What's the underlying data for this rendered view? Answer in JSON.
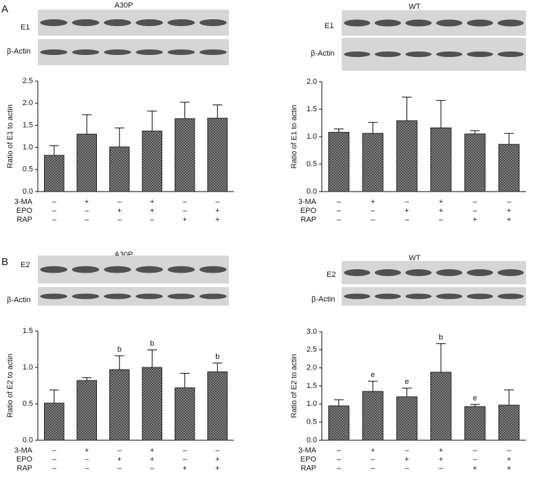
{
  "panels": [
    "A",
    "B"
  ],
  "chart_data": [
    {
      "type": "bar",
      "panel": "A",
      "title": "A30P",
      "blot_labels": [
        "E1",
        "β-Actin"
      ],
      "ylabel": "Ratio of E1 to actin",
      "ylim": [
        0,
        2.5
      ],
      "yticks": [
        {
          "value": 0,
          "label": "0.0"
        },
        0.5,
        {
          "value": 1,
          "label": "1.0"
        },
        1.5,
        {
          "value": 2,
          "label": "2.0"
        },
        2.5
      ],
      "values": [
        0.82,
        1.3,
        1.01,
        1.37,
        1.65,
        1.66
      ],
      "errors": [
        0.22,
        0.44,
        0.43,
        0.45,
        0.37,
        0.3
      ],
      "color": "#8c8c8c",
      "conditions": [
        {
          "name": "3-MA",
          "signs": [
            "–",
            "+",
            "–",
            "+",
            "–",
            "–"
          ]
        },
        {
          "name": "EPO",
          "signs": [
            "–",
            "–",
            "+",
            "+",
            "–",
            "+"
          ]
        },
        {
          "name": "RAP",
          "signs": [
            "–",
            "–",
            "–",
            "–",
            "+",
            "+"
          ]
        }
      ]
    },
    {
      "type": "bar",
      "title": "WT",
      "blot_labels": [
        "E1",
        "β-Actin"
      ],
      "ylabel": "Ratio of E1 to actin",
      "ylim": [
        0,
        2
      ],
      "yticks": [
        {
          "value": 0,
          "label": "0.0"
        },
        0.5,
        {
          "value": 1,
          "label": "1.0"
        },
        1.5,
        {
          "value": 2,
          "label": "2.0"
        }
      ],
      "values": [
        1.08,
        1.06,
        1.29,
        1.16,
        1.05,
        0.86
      ],
      "errors": [
        0.06,
        0.2,
        0.43,
        0.5,
        0.06,
        0.2
      ],
      "color": "#8c8c8c",
      "conditions": [
        {
          "name": "3-MA",
          "signs": [
            "–",
            "+",
            "–",
            "+",
            "–",
            "–"
          ]
        },
        {
          "name": "EPO",
          "signs": [
            "–",
            "–",
            "+",
            "+",
            "–",
            "+"
          ]
        },
        {
          "name": "RAP",
          "signs": [
            "–",
            "–",
            "–",
            "–",
            "+",
            "+"
          ]
        }
      ]
    },
    {
      "type": "bar",
      "panel": "B",
      "title": "A30P",
      "blot_labels": [
        "E2",
        "β-Actin"
      ],
      "ylabel": "Ratio of E2 to actin",
      "ylim": [
        0,
        1.5
      ],
      "yticks": [
        {
          "value": 0,
          "label": "0.0"
        },
        0.5,
        {
          "value": 1,
          "label": "1.0"
        },
        1.5
      ],
      "values": [
        0.51,
        0.82,
        0.97,
        1.0,
        0.72,
        0.94
      ],
      "errors": [
        0.18,
        0.04,
        0.19,
        0.24,
        0.2,
        0.12
      ],
      "color": "#8c8c8c",
      "annotations": [
        null,
        null,
        "b",
        "b",
        null,
        "b"
      ],
      "conditions": [
        {
          "name": "3-MA",
          "signs": [
            "–",
            "+",
            "–",
            "+",
            "–",
            "–"
          ]
        },
        {
          "name": "EPO",
          "signs": [
            "–",
            "–",
            "+",
            "+",
            "–",
            "+"
          ]
        },
        {
          "name": "RAP",
          "signs": [
            "–",
            "–",
            "–",
            "–",
            "+",
            "+"
          ]
        }
      ]
    },
    {
      "type": "bar",
      "title": "WT",
      "blot_labels": [
        "E2",
        "β-Actin"
      ],
      "ylabel": "Ratio of E2 to actin",
      "ylim": [
        0,
        3
      ],
      "yticks": [
        {
          "value": 0,
          "label": "0.0"
        },
        0.5,
        {
          "value": 1,
          "label": "1.0"
        },
        1.5,
        {
          "value": 2,
          "label": "2.0"
        },
        2.5,
        {
          "value": 3,
          "label": "3.0"
        }
      ],
      "values": [
        0.95,
        1.35,
        1.2,
        1.88,
        0.93,
        0.97
      ],
      "errors": [
        0.17,
        0.28,
        0.24,
        0.79,
        0.06,
        0.42
      ],
      "color": "#8c8c8c",
      "annotations": [
        null,
        "e",
        "e",
        "b",
        "e",
        null
      ],
      "conditions": [
        {
          "name": "3-MA",
          "signs": [
            "–",
            "+",
            "–",
            "+",
            "–",
            "–"
          ]
        },
        {
          "name": "EPO",
          "signs": [
            "–",
            "–",
            "+",
            "+",
            "–",
            "+"
          ]
        },
        {
          "name": "RAP",
          "signs": [
            "–",
            "–",
            "–",
            "–",
            "+",
            "+"
          ]
        }
      ]
    }
  ]
}
